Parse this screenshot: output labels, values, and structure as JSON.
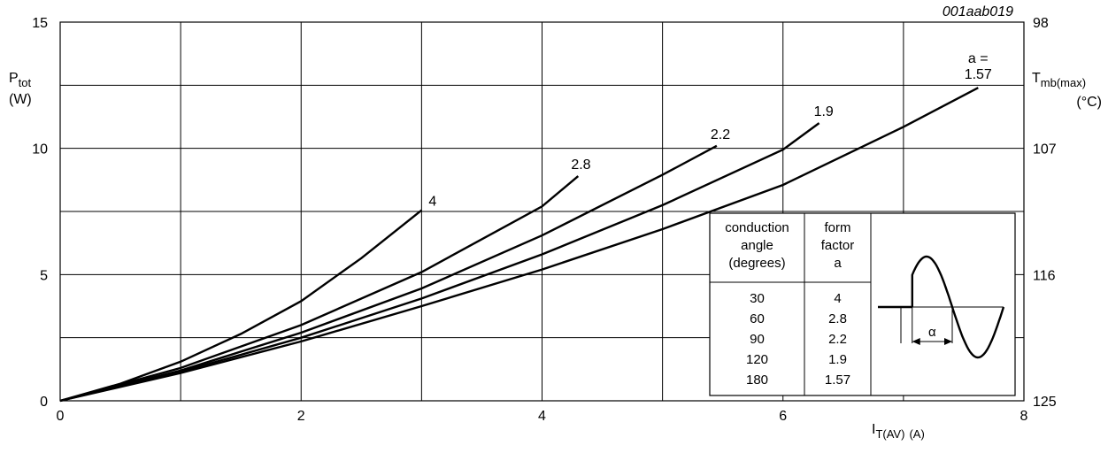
{
  "chart_data": {
    "type": "line",
    "figure_id": "001aab019",
    "xlabel": "I",
    "xlabel_sub": "T(AV)",
    "xlabel_unit": "(A)",
    "ylabel": "P",
    "ylabel_sub": "tot",
    "ylabel_unit": "(W)",
    "y2label": "T",
    "y2label_sub": "mb(max)",
    "y2label_unit": "(°C)",
    "xlim": [
      0,
      8
    ],
    "ylim": [
      0,
      15
    ],
    "xticks": [
      "0",
      "2",
      "4",
      "6",
      "8"
    ],
    "yticks": [
      "0",
      "5",
      "10",
      "15"
    ],
    "y2ticks": [
      "125",
      "116",
      "107",
      "98"
    ],
    "grid": true,
    "series": [
      {
        "name": "4",
        "label": "4",
        "x": [
          0,
          0.5,
          1,
          1.5,
          2,
          2.5,
          3
        ],
        "y": [
          0,
          0.68,
          1.55,
          2.65,
          3.95,
          5.65,
          7.55
        ]
      },
      {
        "name": "2.8",
        "label": "2.8",
        "x": [
          0,
          1,
          2,
          3,
          4,
          4.3
        ],
        "y": [
          0,
          1.3,
          3.0,
          5.1,
          7.7,
          8.9
        ]
      },
      {
        "name": "2.2",
        "label": "2.2",
        "x": [
          0,
          1,
          2,
          3,
          4,
          5,
          5.45
        ],
        "y": [
          0,
          1.2,
          2.7,
          4.45,
          6.55,
          8.95,
          10.1
        ]
      },
      {
        "name": "1.9",
        "label": "1.9",
        "x": [
          0,
          1,
          2,
          3,
          4,
          5,
          6,
          6.3
        ],
        "y": [
          0,
          1.15,
          2.5,
          4.05,
          5.8,
          7.75,
          9.95,
          11.0
        ]
      },
      {
        "name": "1.57",
        "label": "a =\n1.57",
        "x": [
          0,
          1,
          2,
          3,
          4,
          5,
          6,
          7,
          7.62
        ],
        "y": [
          0,
          1.1,
          2.35,
          3.75,
          5.2,
          6.8,
          8.55,
          10.85,
          12.4
        ]
      }
    ],
    "inset_table": {
      "headers": [
        [
          "conduction",
          "angle",
          "(degrees)"
        ],
        [
          "form",
          "factor",
          "a"
        ]
      ],
      "rows": [
        [
          "30",
          "4"
        ],
        [
          "60",
          "2.8"
        ],
        [
          "90",
          "2.2"
        ],
        [
          "120",
          "1.9"
        ],
        [
          "180",
          "1.57"
        ]
      ],
      "alpha_symbol": "α"
    }
  }
}
